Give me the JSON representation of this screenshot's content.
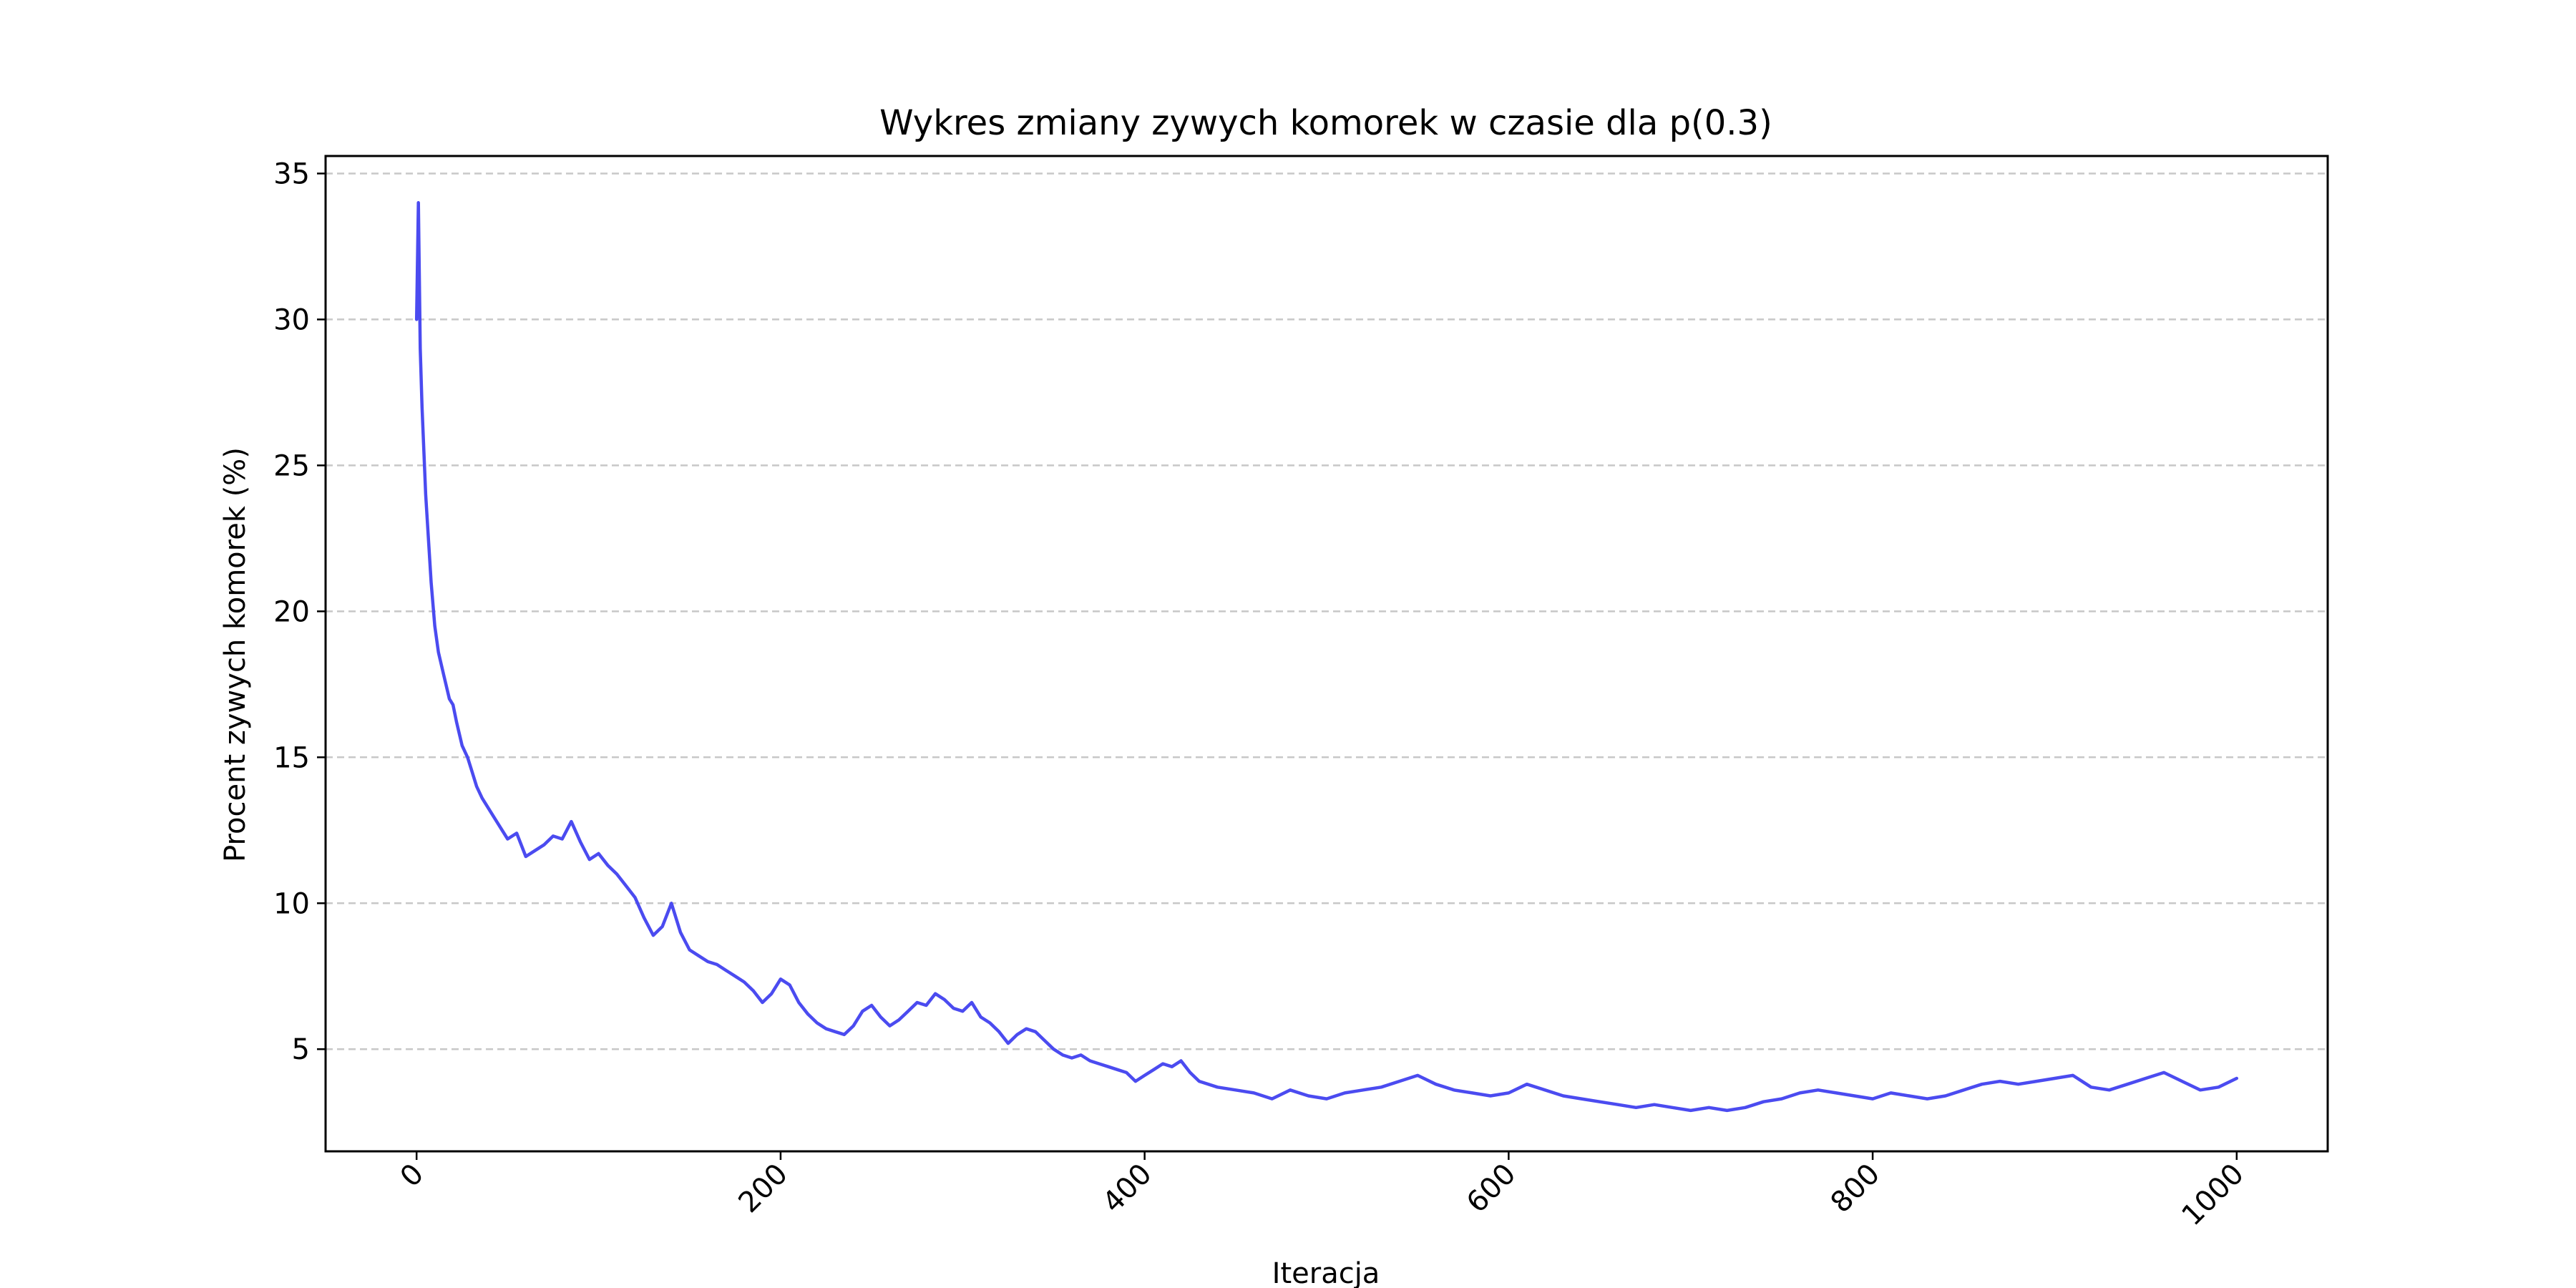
{
  "chart_data": {
    "type": "line",
    "title": "Wykres zmiany zywych komorek w czasie dla p(0.3)",
    "xlabel": "Iteracja",
    "ylabel": "Procent zywych komorek (%)",
    "xlim": [
      -50,
      1050
    ],
    "ylim": [
      1.5,
      35.6
    ],
    "xticks": [
      0,
      200,
      400,
      600,
      800,
      1000
    ],
    "xtick_labels": [
      "0",
      "200",
      "400",
      "600",
      "800",
      "1000"
    ],
    "xtick_rotation_deg": 45,
    "yticks": [
      5,
      10,
      15,
      20,
      25,
      30,
      35
    ],
    "ytick_labels": [
      "5",
      "10",
      "15",
      "20",
      "25",
      "30",
      "35"
    ],
    "grid": "y-dashed",
    "line_color": "#4b4bf0",
    "series": [
      {
        "x": [
          0,
          1,
          2,
          3,
          5,
          8,
          10,
          12,
          15,
          18,
          20,
          22,
          25,
          28,
          30,
          33,
          36,
          40,
          45,
          50,
          55,
          60,
          65,
          70,
          75,
          80,
          85,
          90,
          95,
          100,
          105,
          110,
          115,
          120,
          125,
          130,
          135,
          140,
          145,
          150,
          155,
          160,
          165,
          170,
          175,
          180,
          185,
          190,
          195,
          200,
          205,
          210,
          215,
          220,
          225,
          230,
          235,
          240,
          245,
          250,
          255,
          260,
          265,
          270,
          275,
          280,
          285,
          290,
          295,
          300,
          305,
          310,
          315,
          320,
          325,
          330,
          335,
          340,
          345,
          350,
          355,
          360,
          365,
          370,
          375,
          380,
          385,
          390,
          395,
          400,
          405,
          410,
          415,
          420,
          425,
          430,
          440,
          450,
          460,
          470,
          480,
          490,
          500,
          510,
          520,
          530,
          540,
          550,
          560,
          570,
          580,
          590,
          600,
          610,
          620,
          630,
          640,
          650,
          660,
          670,
          680,
          690,
          700,
          710,
          720,
          730,
          740,
          750,
          760,
          770,
          780,
          790,
          800,
          810,
          820,
          830,
          840,
          850,
          860,
          870,
          880,
          890,
          900,
          910,
          920,
          930,
          940,
          950,
          960,
          970,
          980,
          990,
          1000
        ],
        "y": [
          30.0,
          34.0,
          29.0,
          27.0,
          24.0,
          21.0,
          19.5,
          18.6,
          17.8,
          17.0,
          16.8,
          16.2,
          15.4,
          15.0,
          14.6,
          14.0,
          13.6,
          13.2,
          12.7,
          12.2,
          12.4,
          11.6,
          11.8,
          12.0,
          12.3,
          12.2,
          12.8,
          12.1,
          11.5,
          11.7,
          11.3,
          11.0,
          10.6,
          10.2,
          9.5,
          8.9,
          9.2,
          10.0,
          9.0,
          8.4,
          8.2,
          8.0,
          7.9,
          7.7,
          7.5,
          7.3,
          7.0,
          6.6,
          6.9,
          7.4,
          7.2,
          6.6,
          6.2,
          5.9,
          5.7,
          5.6,
          5.5,
          5.8,
          6.3,
          6.5,
          6.1,
          5.8,
          6.0,
          6.3,
          6.6,
          6.5,
          6.9,
          6.7,
          6.4,
          6.3,
          6.6,
          6.1,
          5.9,
          5.6,
          5.2,
          5.5,
          5.7,
          5.6,
          5.3,
          5.0,
          4.8,
          4.7,
          4.8,
          4.6,
          4.5,
          4.4,
          4.3,
          4.2,
          3.9,
          4.1,
          4.3,
          4.5,
          4.4,
          4.6,
          4.2,
          3.9,
          3.7,
          3.6,
          3.5,
          3.3,
          3.6,
          3.4,
          3.3,
          3.5,
          3.6,
          3.7,
          3.9,
          4.1,
          3.8,
          3.6,
          3.5,
          3.4,
          3.5,
          3.8,
          3.6,
          3.4,
          3.3,
          3.2,
          3.1,
          3.0,
          3.1,
          3.0,
          2.9,
          3.0,
          2.9,
          3.0,
          3.2,
          3.3,
          3.5,
          3.6,
          3.5,
          3.4,
          3.3,
          3.5,
          3.4,
          3.3,
          3.4,
          3.6,
          3.8,
          3.9,
          3.8,
          3.9,
          4.0,
          4.1,
          3.7,
          3.6,
          3.8,
          4.0,
          4.2,
          3.9,
          3.6,
          3.7,
          4.0
        ]
      }
    ]
  }
}
